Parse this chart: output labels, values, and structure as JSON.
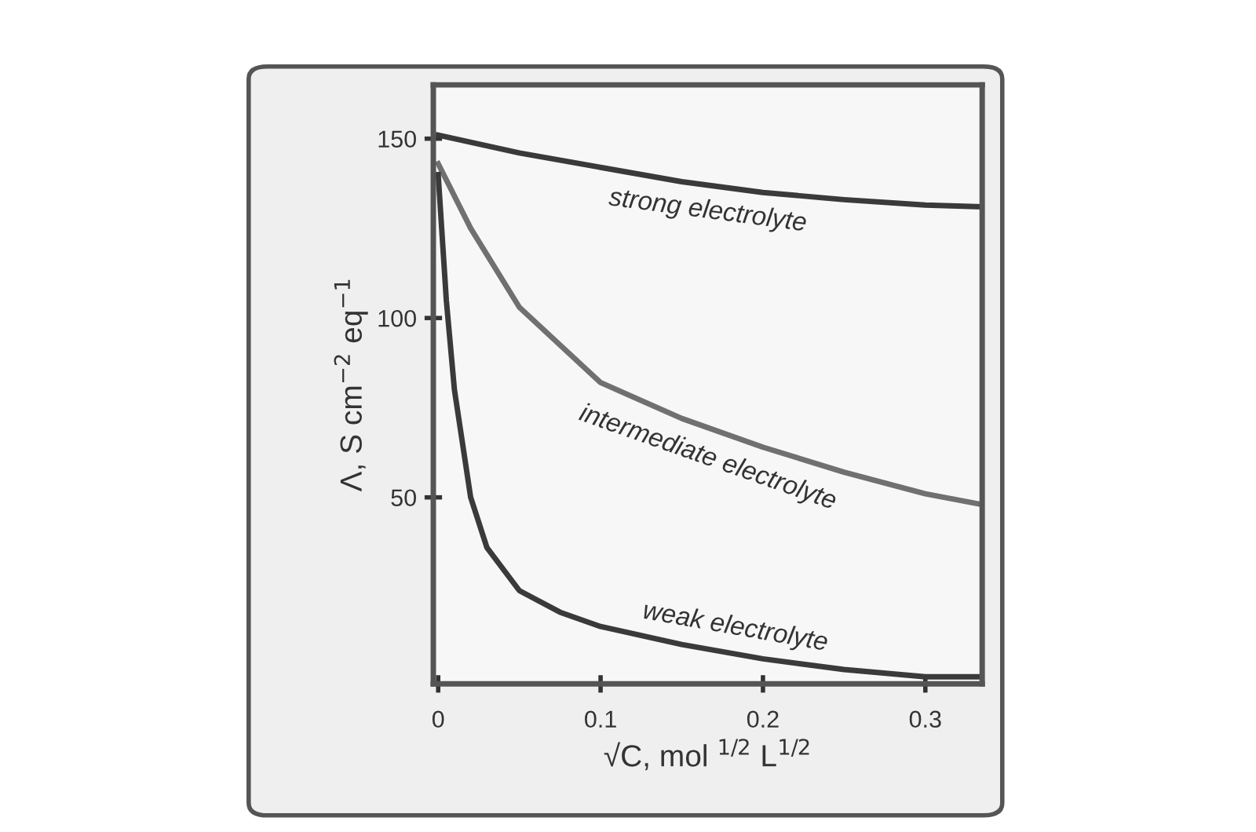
{
  "chart_data": {
    "type": "line",
    "xlabel": "√C, mol $^{1/2}$ L$^{1/2}$",
    "ylabel": "Λ, S cm$^{−2}$ eq$^{−1}$",
    "xlim": [
      -0.003,
      0.335
    ],
    "ylim": [
      -2,
      165
    ],
    "xticks": [
      0,
      0.1,
      0.2,
      0.3
    ],
    "yticks": [
      50,
      100,
      150
    ],
    "grid": false,
    "legend": false,
    "marker": "none",
    "line_style": "solid",
    "series": [
      {
        "name": "strong electrolyte",
        "color": "#3a3a3c",
        "x": [
          0,
          0.05,
          0.1,
          0.15,
          0.2,
          0.25,
          0.3,
          0.335
        ],
        "values": [
          151,
          146,
          142,
          138,
          135,
          133,
          131.5,
          131
        ]
      },
      {
        "name": "intermediate electrolyte",
        "color": "#707072",
        "x": [
          0,
          0.02,
          0.05,
          0.1,
          0.15,
          0.2,
          0.25,
          0.3,
          0.335
        ],
        "values": [
          143,
          125,
          103,
          82,
          72,
          64,
          57,
          51,
          48
        ]
      },
      {
        "name": "weak electrolyte",
        "color": "#3a3a3c",
        "x": [
          0,
          0.005,
          0.01,
          0.02,
          0.03,
          0.05,
          0.075,
          0.1,
          0.15,
          0.2,
          0.25,
          0.3,
          0.335
        ],
        "values": [
          140,
          105,
          80,
          50,
          36,
          24,
          18,
          14,
          9,
          5,
          2,
          0,
          0
        ]
      }
    ]
  }
}
